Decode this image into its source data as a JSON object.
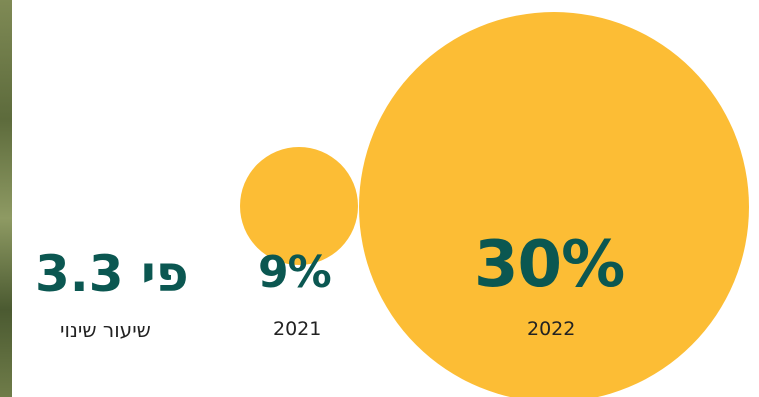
{
  "chart_data": {
    "type": "bubble",
    "categories": [
      "2021",
      "2022"
    ],
    "values": [
      9,
      30
    ],
    "value_labels": [
      "9%",
      "30%"
    ],
    "change": {
      "value": "פי 3.3",
      "label": "שיעור שינוי"
    }
  },
  "colors": {
    "bubble": "#FCBD35",
    "value_text": "#0B5751",
    "label_text": "#222222"
  }
}
